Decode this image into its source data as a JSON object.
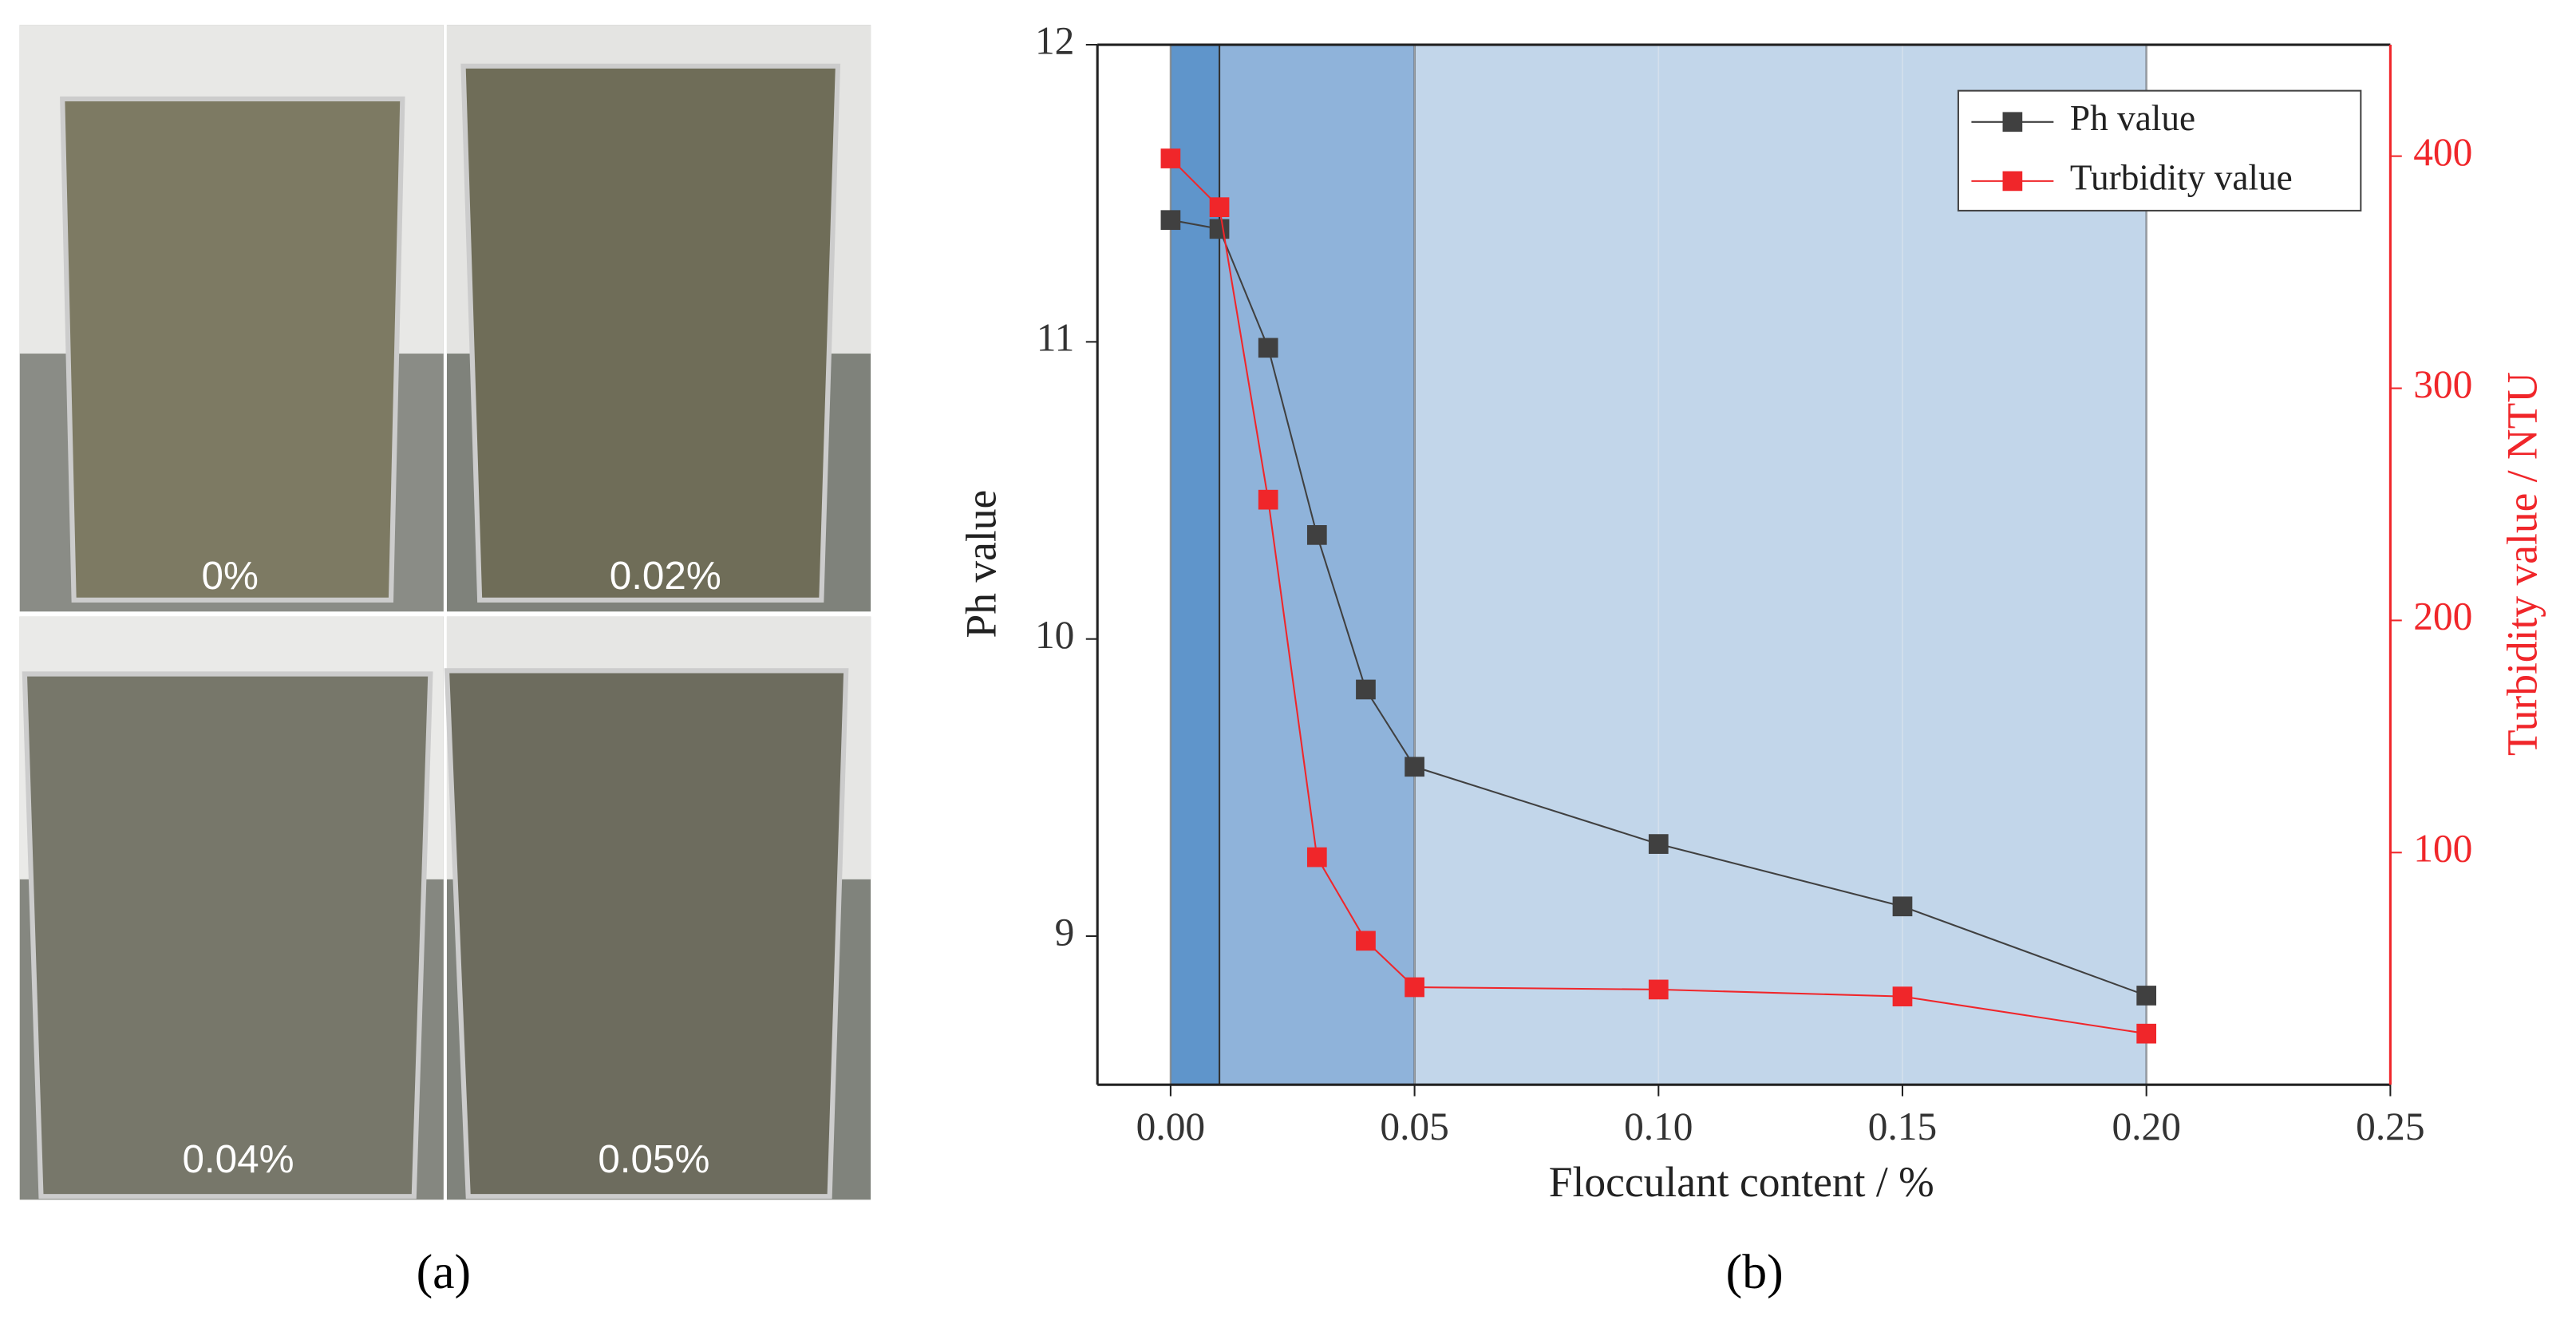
{
  "panel_a": {
    "labels": [
      "0%",
      "0.02%",
      "0.04%",
      "0.05%"
    ],
    "caption": "(a)"
  },
  "chart_data": {
    "type": "line",
    "caption": "(b)",
    "x_label": "Flocculant content / %",
    "y_label": "Ph value",
    "y2_label": "Turbidity value / NTU",
    "x": [
      0,
      0.01,
      0.02,
      0.03,
      0.04,
      0.05,
      0.1,
      0.15,
      0.2
    ],
    "series": [
      {
        "name": "Ph value",
        "color": "#404040",
        "values": [
          11.41,
          11.38,
          10.98,
          10.35,
          9.83,
          9.57,
          9.31,
          9.1,
          8.8
        ]
      },
      {
        "name": "Turbidity value",
        "color": "#f0262a",
        "axis": "y2",
        "values": [
          399,
          378,
          252,
          98,
          62,
          42,
          41,
          38,
          22
        ]
      }
    ],
    "regions": [
      {
        "x": [
          0,
          0.01
        ],
        "color": "#5f95cb"
      },
      {
        "x": [
          0.01,
          0.05
        ],
        "color": "#8fb3da"
      },
      {
        "x": [
          0.05,
          0.2
        ],
        "color": "#c2d6ea"
      }
    ],
    "xlim": [
      -0.015,
      0.25
    ],
    "xticks": [
      {
        "value": 0,
        "label": "0.00"
      },
      {
        "value": 0.05,
        "label": "0.05"
      },
      {
        "value": 0.1,
        "label": "0.10"
      },
      {
        "value": 0.15,
        "label": "0.15"
      },
      {
        "value": 0.2,
        "label": "0.20"
      },
      {
        "value": 0.25,
        "label": "0.25"
      }
    ],
    "ylim": [
      8.5,
      12
    ],
    "yticks": [
      9,
      10,
      11,
      12
    ],
    "y2lim": [
      0,
      448
    ],
    "y2ticks": [
      100,
      200,
      300,
      400
    ],
    "grid": true,
    "legend": "top-right"
  }
}
